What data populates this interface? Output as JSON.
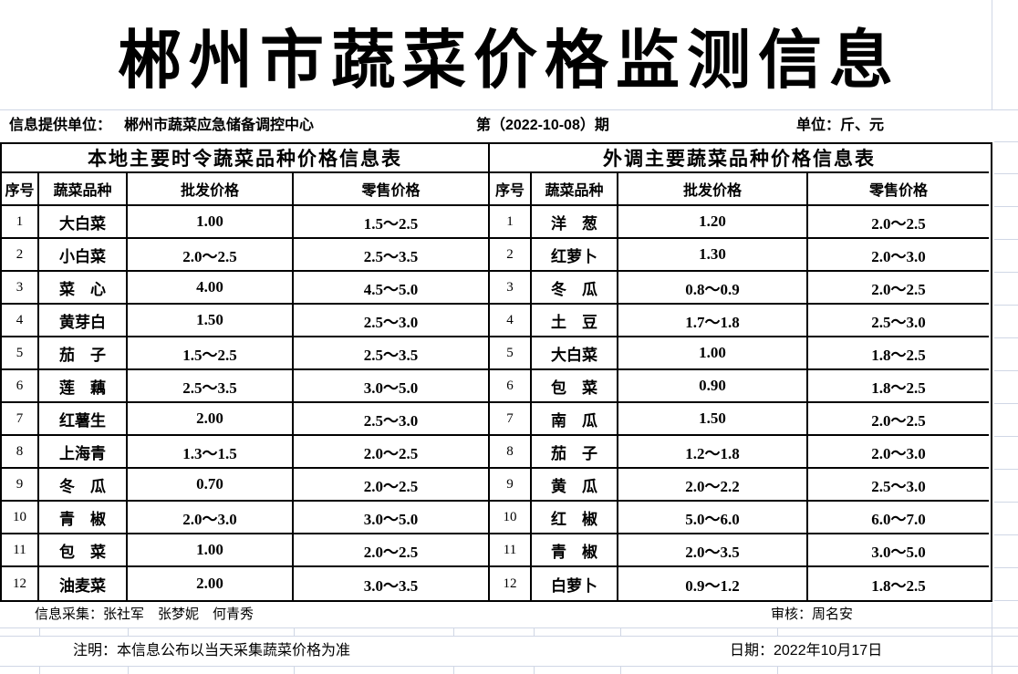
{
  "title": "郴州市蔬菜价格监测信息",
  "info_bar": {
    "provider_label": "信息提供单位：",
    "provider_value": "郴州市蔬菜应急储备调控中心",
    "issue": "第（2022-10-08）期",
    "unit": "单位：斤、元"
  },
  "tables": {
    "columns": [
      "序号",
      "蔬菜品种",
      "批发价格",
      "零售价格"
    ],
    "local": {
      "title": "本地主要时令蔬菜品种价格信息表",
      "rows": [
        [
          "1",
          "大白菜",
          "1.00",
          "1.5～2.5"
        ],
        [
          "2",
          "小白菜",
          "2.0～2.5",
          "2.5～3.5"
        ],
        [
          "3",
          "菜　心",
          "4.00",
          "4.5～5.0"
        ],
        [
          "4",
          "黄芽白",
          "1.50",
          "2.5～3.0"
        ],
        [
          "5",
          "茄　子",
          "1.5～2.5",
          "2.5～3.5"
        ],
        [
          "6",
          "莲　藕",
          "2.5～3.5",
          "3.0～5.0"
        ],
        [
          "7",
          "红薯生",
          "2.00",
          "2.5～3.0"
        ],
        [
          "8",
          "上海青",
          "1.3～1.5",
          "2.0～2.5"
        ],
        [
          "9",
          "冬　瓜",
          "0.70",
          "2.0～2.5"
        ],
        [
          "10",
          "青　椒",
          "2.0～3.0",
          "3.0～5.0"
        ],
        [
          "11",
          "包　菜",
          "1.00",
          "2.0～2.5"
        ],
        [
          "12",
          "油麦菜",
          "2.00",
          "3.0～3.5"
        ]
      ]
    },
    "external": {
      "title": "外调主要蔬菜品种价格信息表",
      "rows": [
        [
          "1",
          "洋　葱",
          "1.20",
          "2.0～2.5"
        ],
        [
          "2",
          "红萝卜",
          "1.30",
          "2.0～3.0"
        ],
        [
          "3",
          "冬　瓜",
          "0.8～0.9",
          "2.0～2.5"
        ],
        [
          "4",
          "土　豆",
          "1.7～1.8",
          "2.5～3.0"
        ],
        [
          "5",
          "大白菜",
          "1.00",
          "1.8～2.5"
        ],
        [
          "6",
          "包　菜",
          "0.90",
          "1.8～2.5"
        ],
        [
          "7",
          "南　瓜",
          "1.50",
          "2.0～2.5"
        ],
        [
          "8",
          "茄　子",
          "1.2～1.8",
          "2.0～3.0"
        ],
        [
          "9",
          "黄　瓜",
          "2.0～2.2",
          "2.5～3.0"
        ],
        [
          "10",
          "红　椒",
          "5.0～6.0",
          "6.0～7.0"
        ],
        [
          "11",
          "青　椒",
          "2.0～3.5",
          "3.0～5.0"
        ],
        [
          "12",
          "白萝卜",
          "0.9～1.2",
          "1.8～2.5"
        ]
      ]
    }
  },
  "footer": {
    "collectors": "信息采集：张社军　张梦妮　何青秀",
    "reviewer": "审核：周名安",
    "note": "注明：本信息公布以当天采集蔬菜价格为准",
    "date": "日期：2022年10月17日"
  },
  "colors": {
    "text": "#000000",
    "table_border": "#000000",
    "gridline": "#d0d7e5",
    "background": "#ffffff"
  }
}
